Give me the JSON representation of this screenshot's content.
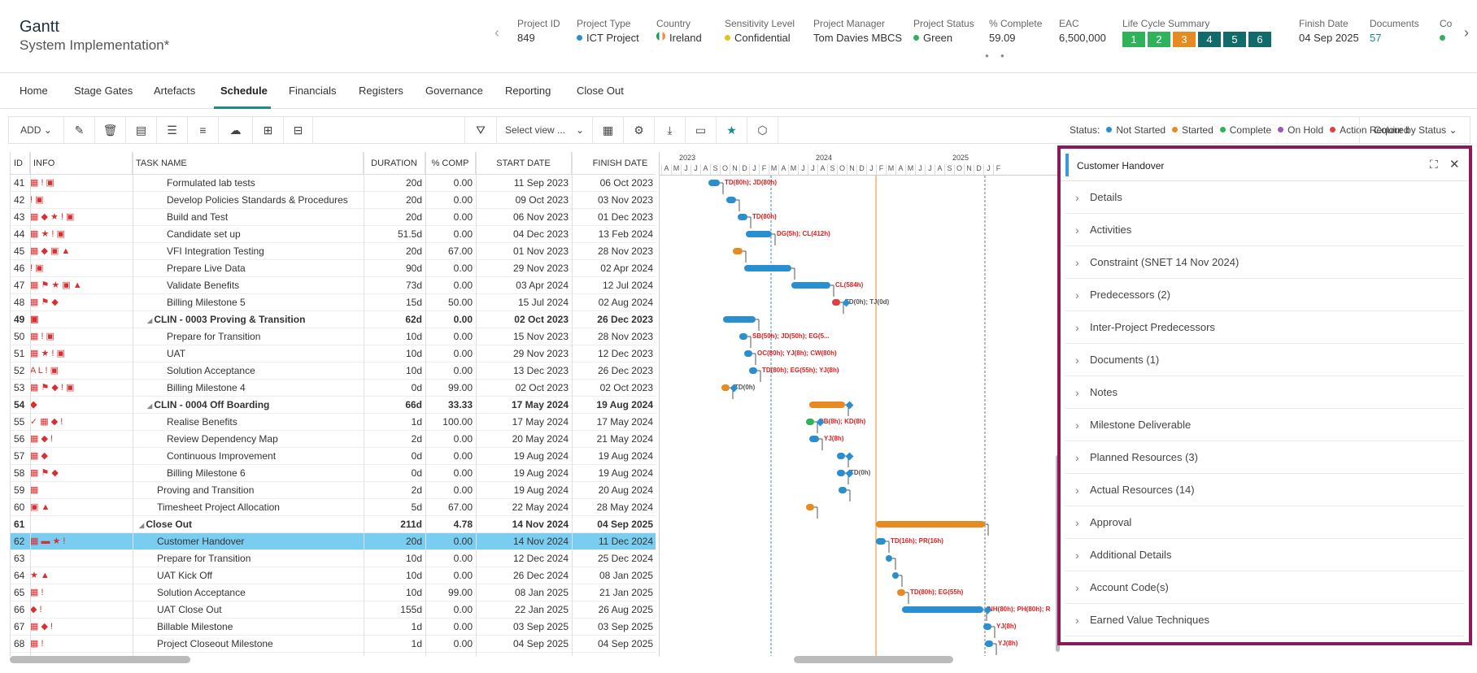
{
  "header": {
    "title": "Gantt",
    "subtitle": "System Implementation*",
    "meta": [
      {
        "label": "Project ID",
        "value": "849"
      },
      {
        "label": "Project Type",
        "value": "ICT Project",
        "dot": "#2a8fd1"
      },
      {
        "label": "Country",
        "value": "Ireland",
        "flag": true
      },
      {
        "label": "Sensitivity Level",
        "value": "Confidential",
        "dot": "#e8c21a"
      },
      {
        "label": "Project Manager",
        "value": "Tom Davies MBCS"
      },
      {
        "label": "Project Status",
        "value": "Green",
        "dot": "#2fb35a"
      },
      {
        "label": "% Complete",
        "value": "59.09"
      },
      {
        "label": "EAC",
        "value": "6,500,000"
      },
      {
        "label": "Life Cycle Summary"
      },
      {
        "label": "Finish Date",
        "value": "04 Sep 2025"
      },
      {
        "label": "Documents",
        "value": "57",
        "color": "#1a8c8c"
      },
      {
        "label": "Co"
      }
    ],
    "lifecycle": [
      {
        "n": "1",
        "c": "#2fb35a"
      },
      {
        "n": "2",
        "c": "#2fb35a"
      },
      {
        "n": "3",
        "c": "#e88a22"
      },
      {
        "n": "4",
        "c": "#116b6b"
      },
      {
        "n": "5",
        "c": "#116b6b"
      },
      {
        "n": "6",
        "c": "#116b6b"
      }
    ]
  },
  "tabs": [
    "Home",
    "Stage Gates",
    "Artefacts",
    "Schedule",
    "Financials",
    "Registers",
    "Governance",
    "Reporting",
    "Close Out"
  ],
  "toolbar": {
    "add": "ADD",
    "select_view": "Select view ...",
    "status_label": "Status:",
    "colour_by": "Colour by Status",
    "statuses": [
      {
        "name": "Not Started",
        "c": "#2a8fd1"
      },
      {
        "name": "Started",
        "c": "#e88a22"
      },
      {
        "name": "Complete",
        "c": "#2fb35a"
      },
      {
        "name": "On Hold",
        "c": "#9b59b6"
      },
      {
        "name": "Action Required",
        "c": "#e04040"
      }
    ]
  },
  "columns": [
    "ID",
    "INFO",
    "TASK NAME",
    "DURATION",
    "% COMP",
    "START DATE",
    "FINISH DATE"
  ],
  "rows": [
    {
      "id": "41",
      "info": "▦ ! ▣",
      "name": "Formulated lab tests",
      "indent": 2,
      "dur": "20d",
      "pc": "0.00",
      "sd": "11 Sep 2023",
      "fd": "06 Oct 2023"
    },
    {
      "id": "42",
      "info": "! ▣",
      "name": "Develop Policies Standards & Procedures",
      "indent": 2,
      "dur": "20d",
      "pc": "0.00",
      "sd": "09 Oct 2023",
      "fd": "03 Nov 2023"
    },
    {
      "id": "43",
      "info": "▦ ◆ ★ ! ▣",
      "name": "Build and Test",
      "indent": 2,
      "dur": "20d",
      "pc": "0.00",
      "sd": "06 Nov 2023",
      "fd": "01 Dec 2023"
    },
    {
      "id": "44",
      "info": "▦ ★ ! ▣",
      "name": "Candidate set up",
      "indent": 2,
      "dur": "51.5d",
      "pc": "0.00",
      "sd": "04 Dec 2023",
      "fd": "13 Feb 2024"
    },
    {
      "id": "45",
      "info": "▦ ◆ ▣ ▲",
      "name": "VFI Integration Testing",
      "indent": 2,
      "dur": "20d",
      "pc": "67.00",
      "sd": "01 Nov 2023",
      "fd": "28 Nov 2023"
    },
    {
      "id": "46",
      "info": "! ▣",
      "name": "Prepare Live Data",
      "indent": 2,
      "dur": "90d",
      "pc": "0.00",
      "sd": "29 Nov 2023",
      "fd": "02 Apr 2024"
    },
    {
      "id": "47",
      "info": "▦ ⚑ ★ ▣ ▲",
      "name": "Validate Benefits",
      "indent": 2,
      "dur": "73d",
      "pc": "0.00",
      "sd": "03 Apr 2024",
      "fd": "12 Jul 2024"
    },
    {
      "id": "48",
      "info": "▦ ⚑ ◆",
      "name": "Billing Milestone 5",
      "indent": 2,
      "dur": "15d",
      "pc": "50.00",
      "sd": "15 Jul 2024",
      "fd": "02 Aug 2024"
    },
    {
      "id": "49",
      "info": "▣",
      "name": "CLIN - 0003 Proving & Transition",
      "indent": 1,
      "sum": true,
      "dur": "62d",
      "pc": "0.00",
      "sd": "02 Oct 2023",
      "fd": "26 Dec 2023"
    },
    {
      "id": "50",
      "info": "▦ ! ▣",
      "name": "Prepare for Transition",
      "indent": 2,
      "dur": "10d",
      "pc": "0.00",
      "sd": "15 Nov 2023",
      "fd": "28 Nov 2023"
    },
    {
      "id": "51",
      "info": "▦ ★ ! ▣",
      "name": "UAT",
      "indent": 2,
      "dur": "10d",
      "pc": "0.00",
      "sd": "29 Nov 2023",
      "fd": "12 Dec 2023"
    },
    {
      "id": "52",
      "info": "A L ! ▣",
      "name": "Solution Acceptance",
      "indent": 2,
      "dur": "10d",
      "pc": "0.00",
      "sd": "13 Dec 2023",
      "fd": "26 Dec 2023"
    },
    {
      "id": "53",
      "info": "▦ ⚑ ◆ ! ▣",
      "name": "Billing Milestone 4",
      "indent": 2,
      "dur": "0d",
      "pc": "99.00",
      "sd": "02 Oct 2023",
      "fd": "02 Oct 2023"
    },
    {
      "id": "54",
      "info": "◆",
      "name": "CLIN - 0004 Off Boarding",
      "indent": 1,
      "sum": true,
      "dur": "66d",
      "pc": "33.33",
      "sd": "17 May 2024",
      "fd": "19 Aug 2024"
    },
    {
      "id": "55",
      "info": "✓ ▦ ◆ !",
      "name": "Realise Benefits",
      "indent": 2,
      "dur": "1d",
      "pc": "100.00",
      "sd": "17 May 2024",
      "fd": "17 May 2024"
    },
    {
      "id": "56",
      "info": "▦ ◆ !",
      "name": "Review Dependency Map",
      "indent": 2,
      "dur": "2d",
      "pc": "0.00",
      "sd": "20 May 2024",
      "fd": "21 May 2024"
    },
    {
      "id": "57",
      "info": "▦ ◆",
      "name": "Continuous Improvement",
      "indent": 2,
      "dur": "0d",
      "pc": "0.00",
      "sd": "19 Aug 2024",
      "fd": "19 Aug 2024"
    },
    {
      "id": "58",
      "info": "▦ ⚑ ◆",
      "name": "Billing Milestone 6",
      "indent": 2,
      "dur": "0d",
      "pc": "0.00",
      "sd": "19 Aug 2024",
      "fd": "19 Aug 2024"
    },
    {
      "id": "59",
      "info": "▦",
      "name": "Proving and Transition",
      "indent": 1,
      "dur": "2d",
      "pc": "0.00",
      "sd": "19 Aug 2024",
      "fd": "20 Aug 2024"
    },
    {
      "id": "60",
      "info": "▣ ▲",
      "name": "Timesheet Project Allocation",
      "indent": 1,
      "dur": "5d",
      "pc": "67.00",
      "sd": "22 May 2024",
      "fd": "28 May 2024"
    },
    {
      "id": "61",
      "info": "",
      "name": "Close Out",
      "indent": 0,
      "sum": true,
      "dur": "211d",
      "pc": "4.78",
      "sd": "14 Nov 2024",
      "fd": "04 Sep 2025"
    },
    {
      "id": "62",
      "info": "▦ ▬ ★ !",
      "name": "Customer Handover",
      "indent": 1,
      "sel": true,
      "dur": "20d",
      "pc": "0.00",
      "sd": "14 Nov 2024",
      "fd": "11 Dec 2024"
    },
    {
      "id": "63",
      "info": "",
      "name": "Prepare for Transition",
      "indent": 1,
      "dur": "10d",
      "pc": "0.00",
      "sd": "12 Dec 2024",
      "fd": "25 Dec 2024"
    },
    {
      "id": "64",
      "info": "★ ▲",
      "name": "UAT Kick Off",
      "indent": 1,
      "dur": "10d",
      "pc": "0.00",
      "sd": "26 Dec 2024",
      "fd": "08 Jan 2025"
    },
    {
      "id": "65",
      "info": "▦ !",
      "name": "Solution Acceptance",
      "indent": 1,
      "dur": "10d",
      "pc": "99.00",
      "sd": "08 Jan 2025",
      "fd": "21 Jan 2025"
    },
    {
      "id": "66",
      "info": "◆ !",
      "name": "UAT Close Out",
      "indent": 1,
      "dur": "155d",
      "pc": "0.00",
      "sd": "22 Jan 2025",
      "fd": "26 Aug 2025"
    },
    {
      "id": "67",
      "info": "▦ ◆ !",
      "name": "Billable Milestone",
      "indent": 1,
      "dur": "1d",
      "pc": "0.00",
      "sd": "03 Sep 2025",
      "fd": "03 Sep 2025"
    },
    {
      "id": "68",
      "info": "▦ !",
      "name": "Project Closeout Milestone",
      "indent": 1,
      "dur": "1d",
      "pc": "0.00",
      "sd": "04 Sep 2025",
      "fd": "04 Sep 2025"
    }
  ],
  "gantt": {
    "years": [
      "2023",
      "2024",
      "2025"
    ],
    "months": [
      "A",
      "M",
      "J",
      "J",
      "A",
      "S",
      "O",
      "N",
      "D",
      "J",
      "F",
      "M",
      "A",
      "M",
      "J",
      "J",
      "A",
      "S",
      "O",
      "N",
      "D",
      "J",
      "F",
      "M",
      "A",
      "M",
      "J",
      "J",
      "A",
      "S",
      "O",
      "N",
      "D",
      "J",
      "F"
    ],
    "labels": [
      "TD(80h); JD(80h)",
      "TD(80h)",
      "DG(5h); CL(412h)",
      "CL(584h)",
      "TD(0h); TJ(0d)",
      "SB(50h); JD(50h); EG(5...",
      "OC(80h); YJ(8h); CW(80h)",
      "TD(80h); EG(55h); YJ(8h)",
      "TD(0h)",
      "DB(8h); KD(8h)",
      "YJ(8h)",
      "TD(0h)",
      "TD(16h); PR(16h)",
      "TD(80h); EG(55h)",
      "NH(80h); PH(80h); R",
      "YJ(8h)",
      "YJ(8h)"
    ]
  },
  "panel": {
    "title": "Customer Handover",
    "sections": [
      "Details",
      "Activities",
      "Constraint (SNET 14 Nov 2024)",
      "Predecessors (2)",
      "Inter-Project Predecessors",
      "Documents (1)",
      "Notes",
      "Milestone Deliverable",
      "Planned Resources (3)",
      "Actual Resources (14)",
      "Approval",
      "Additional Details",
      "Account Code(s)",
      "Earned Value Techniques"
    ]
  }
}
